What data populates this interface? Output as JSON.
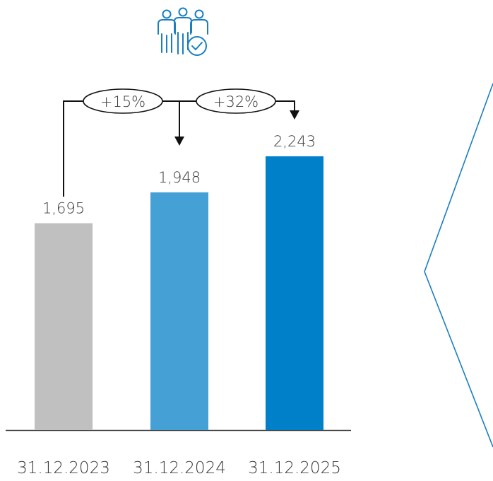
{
  "chart_data": {
    "type": "bar",
    "categories": [
      "31.12.2023",
      "31.12.2024",
      "31.12.2025"
    ],
    "values": [
      1695,
      1948,
      2243
    ],
    "value_labels": [
      "1,695",
      "1,948",
      "2,243"
    ],
    "colors": [
      "#c0c0c0",
      "#45a0d6",
      "#0080c8"
    ],
    "growth_annotations": [
      "+15%",
      "+32%"
    ],
    "icon": "people-check-icon",
    "accent_color": "#1a7fc1"
  }
}
